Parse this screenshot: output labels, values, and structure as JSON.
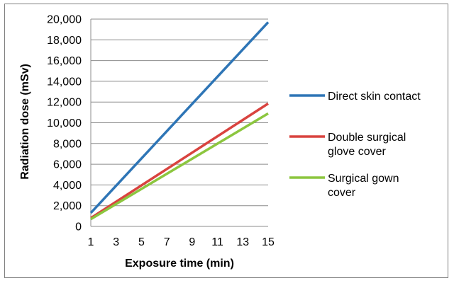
{
  "chart_data": {
    "type": "line",
    "xlabel": "Exposure time (min)",
    "ylabel": "Radiation dose (mSv)",
    "x_ticks": [
      "1",
      "3",
      "5",
      "7",
      "9",
      "11",
      "13",
      "15"
    ],
    "y_ticks": [
      "0",
      "2,000",
      "4,000",
      "6,000",
      "8,000",
      "10,000",
      "12,000",
      "14,000",
      "16,000",
      "18,000",
      "20,000"
    ],
    "xlim": [
      1,
      15
    ],
    "ylim": [
      0,
      20000
    ],
    "grid": "horizontal",
    "legend_position": "right",
    "series": [
      {
        "name": "Direct skin contact",
        "name_lines": [
          "Direct skin contact"
        ],
        "color": "#2e75b6",
        "x": [
          1,
          15
        ],
        "y": [
          1300,
          19700
        ]
      },
      {
        "name": "Double surgical glove cover",
        "name_lines": [
          "Double surgical",
          "glove cover"
        ],
        "color": "#d9433f",
        "x": [
          1,
          15
        ],
        "y": [
          800,
          11850
        ]
      },
      {
        "name": "Surgical gown cover",
        "name_lines": [
          "Surgical gown",
          "cover"
        ],
        "color": "#8cc63f",
        "x": [
          1,
          15
        ],
        "y": [
          700,
          10900
        ]
      }
    ]
  }
}
